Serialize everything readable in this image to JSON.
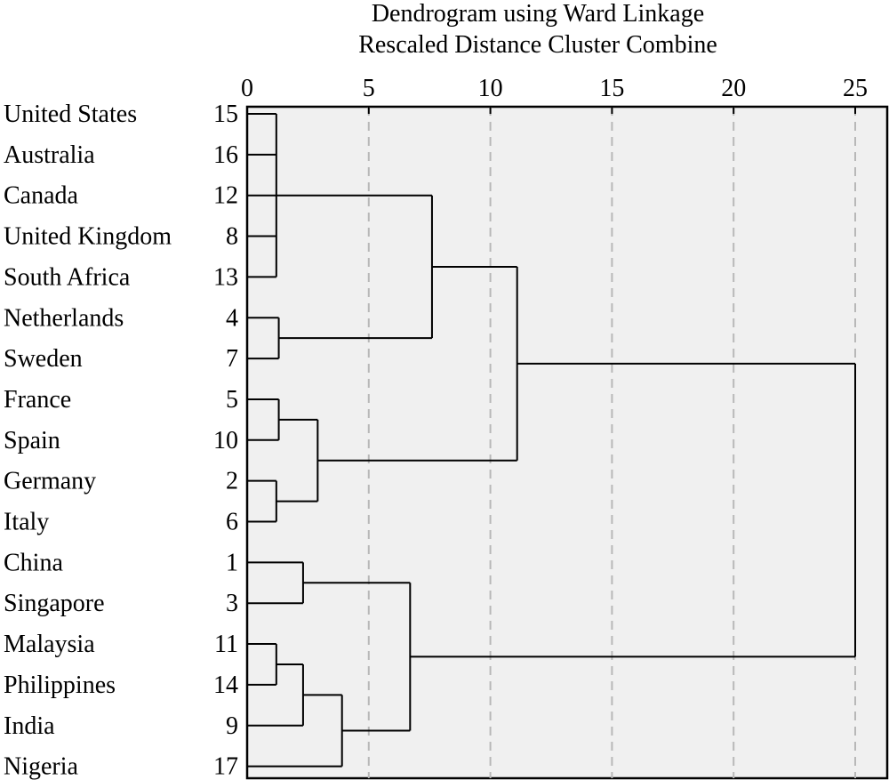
{
  "chart_data": {
    "type": "dendrogram",
    "title": "Dendrogram using Ward Linkage",
    "subtitle": "Rescaled Distance Cluster Combine",
    "xlim": [
      0,
      25
    ],
    "x_ticks": [
      "0",
      "5",
      "10",
      "15",
      "20",
      "25"
    ],
    "grid": "dashed vertical at each tick",
    "leaves": [
      {
        "label": "United States",
        "case": "15"
      },
      {
        "label": "Australia",
        "case": "16"
      },
      {
        "label": "Canada",
        "case": "12"
      },
      {
        "label": "United Kingdom",
        "case": "8"
      },
      {
        "label": "South Africa",
        "case": "13"
      },
      {
        "label": "Netherlands",
        "case": "4"
      },
      {
        "label": "Sweden",
        "case": "7"
      },
      {
        "label": "France",
        "case": "5"
      },
      {
        "label": "Spain",
        "case": "10"
      },
      {
        "label": "Germany",
        "case": "2"
      },
      {
        "label": "Italy",
        "case": "6"
      },
      {
        "label": "China",
        "case": "1"
      },
      {
        "label": "Singapore",
        "case": "3"
      },
      {
        "label": "Malaysia",
        "case": "11"
      },
      {
        "label": "Philippines",
        "case": "14"
      },
      {
        "label": "India",
        "case": "9"
      },
      {
        "label": "Nigeria",
        "case": "17"
      }
    ],
    "merges": [
      {
        "id": "m0",
        "children": [
          "15",
          "16",
          "12",
          "8",
          "13"
        ],
        "distance": 1.2
      },
      {
        "id": "m1",
        "children": [
          "4",
          "7"
        ],
        "distance": 1.3
      },
      {
        "id": "m2",
        "children": [
          "m0",
          "m1"
        ],
        "distance": 7.6
      },
      {
        "id": "m3",
        "children": [
          "5",
          "10"
        ],
        "distance": 1.3
      },
      {
        "id": "m4",
        "children": [
          "2",
          "6"
        ],
        "distance": 1.2
      },
      {
        "id": "m5",
        "children": [
          "m3",
          "m4"
        ],
        "distance": 2.9
      },
      {
        "id": "m6",
        "children": [
          "m2",
          "m5"
        ],
        "distance": 11.1
      },
      {
        "id": "m7",
        "children": [
          "1",
          "3"
        ],
        "distance": 2.3
      },
      {
        "id": "m8",
        "children": [
          "11",
          "14"
        ],
        "distance": 1.2
      },
      {
        "id": "m9",
        "children": [
          "m8",
          "9"
        ],
        "distance": 2.3
      },
      {
        "id": "m10",
        "children": [
          "m9",
          "17"
        ],
        "distance": 3.9
      },
      {
        "id": "m11",
        "children": [
          "m7",
          "m10"
        ],
        "distance": 6.7
      },
      {
        "id": "m12",
        "children": [
          "m6",
          "m11"
        ],
        "distance": 25
      }
    ]
  }
}
